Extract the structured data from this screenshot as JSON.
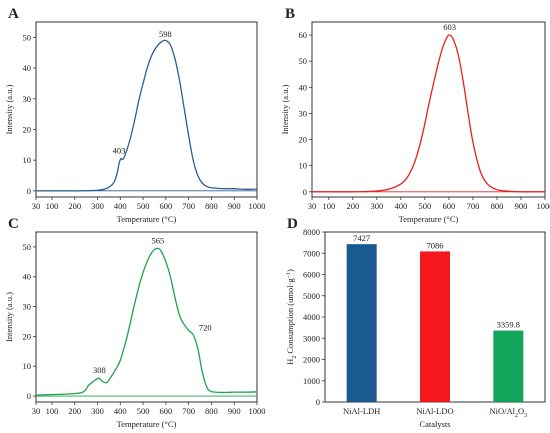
{
  "colors": {
    "panel_a": "#2e5e8e",
    "panel_b": "#e8201e",
    "panel_c": "#1ea34a",
    "bar_ldh": "#1b5a8f",
    "bar_ldo": "#f4181d",
    "bar_nio": "#12a55a"
  },
  "chart_data": [
    {
      "panel": "A",
      "type": "line",
      "xlabel": "Temperature (°C)",
      "ylabel": "Intensity (a.u.)",
      "xlim": [
        30,
        1000
      ],
      "ylim": [
        -2,
        55
      ],
      "xticks": [
        30,
        100,
        200,
        300,
        400,
        500,
        600,
        700,
        800,
        900,
        1000
      ],
      "yticks": [
        0,
        10,
        20,
        30,
        40,
        50
      ],
      "baseline": 0,
      "annotations": [
        {
          "text": "403",
          "x": 403,
          "y": 10.5
        },
        {
          "text": "598",
          "x": 598,
          "y": 48.5
        }
      ],
      "x": [
        30,
        100,
        200,
        300,
        340,
        370,
        385,
        395,
        403,
        410,
        420,
        440,
        460,
        480,
        500,
        520,
        540,
        560,
        580,
        598,
        620,
        640,
        660,
        680,
        700,
        720,
        740,
        760,
        780,
        800,
        830,
        860,
        900,
        950,
        1000
      ],
      "y": [
        0,
        0,
        0,
        0.2,
        0.8,
        2.5,
        5.5,
        9,
        10.5,
        10.2,
        11.5,
        16,
        22,
        29,
        35,
        40.5,
        44.5,
        47,
        48.5,
        49,
        47.5,
        43,
        36,
        27,
        18,
        10,
        5,
        2.5,
        1.4,
        1,
        0.8,
        0.7,
        0.7,
        0.5,
        0.6
      ]
    },
    {
      "panel": "B",
      "type": "line",
      "xlabel": "Temperature (°C)",
      "ylabel": "Intensity (a.u.)",
      "xlim": [
        30,
        1000
      ],
      "ylim": [
        -2,
        65
      ],
      "xticks": [
        30,
        100,
        200,
        300,
        400,
        500,
        600,
        700,
        800,
        900,
        1000
      ],
      "yticks": [
        0,
        10,
        20,
        30,
        40,
        50,
        60
      ],
      "baseline": 0,
      "annotations": [
        {
          "text": "603",
          "x": 603,
          "y": 60
        }
      ],
      "x": [
        30,
        100,
        200,
        300,
        350,
        400,
        430,
        460,
        490,
        520,
        550,
        570,
        590,
        603,
        620,
        640,
        660,
        680,
        700,
        730,
        760,
        800,
        850,
        900,
        950,
        1000
      ],
      "y": [
        0,
        0,
        0,
        0.3,
        1,
        3,
        6,
        12,
        22,
        35,
        47,
        54,
        58.8,
        60,
        58,
        52,
        42,
        30,
        19,
        8,
        3,
        0.8,
        0.2,
        0,
        0,
        0
      ]
    },
    {
      "panel": "C",
      "type": "line",
      "xlabel": "Temperature (°C)",
      "ylabel": "Intensity (a.u.)",
      "xlim": [
        30,
        1000
      ],
      "ylim": [
        -2,
        55
      ],
      "xticks": [
        30,
        100,
        200,
        300,
        400,
        500,
        600,
        700,
        800,
        900,
        1000
      ],
      "yticks": [
        0,
        10,
        20,
        30,
        40,
        50
      ],
      "baseline": 0,
      "annotations": [
        {
          "text": "308",
          "x": 308,
          "y": 6
        },
        {
          "text": "565",
          "x": 565,
          "y": 49.5
        },
        {
          "text": "720",
          "x": 720,
          "y": 21
        }
      ],
      "x": [
        30,
        100,
        200,
        240,
        260,
        280,
        300,
        308,
        320,
        340,
        360,
        380,
        400,
        430,
        460,
        490,
        520,
        545,
        565,
        580,
        600,
        620,
        640,
        660,
        680,
        700,
        720,
        740,
        760,
        780,
        800,
        850,
        900,
        950,
        1000
      ],
      "y": [
        0.3,
        0.5,
        0.8,
        1.5,
        3.5,
        4.8,
        5.8,
        6,
        5,
        4.5,
        6.5,
        9,
        12,
        20,
        30,
        39,
        45.5,
        48.8,
        49.5,
        48.5,
        45,
        40,
        33,
        27,
        24,
        22,
        20.5,
        16,
        8,
        3,
        1.5,
        1.2,
        1.3,
        1.3,
        1.4
      ]
    },
    {
      "panel": "D",
      "type": "bar",
      "xlabel": "Catalysts",
      "ylabel": "H2 Consumption (umol·g−1)",
      "ylim": [
        0,
        8000
      ],
      "yticks": [
        0,
        1000,
        2000,
        3000,
        4000,
        5000,
        6000,
        7000,
        8000
      ],
      "categories": [
        "NiAl-LDH",
        "NiAl-LDO",
        "NiO/Al2O3"
      ],
      "values": [
        7427,
        7086,
        3359.8
      ],
      "value_labels": [
        "7427",
        "7086",
        "3359.8"
      ]
    }
  ]
}
